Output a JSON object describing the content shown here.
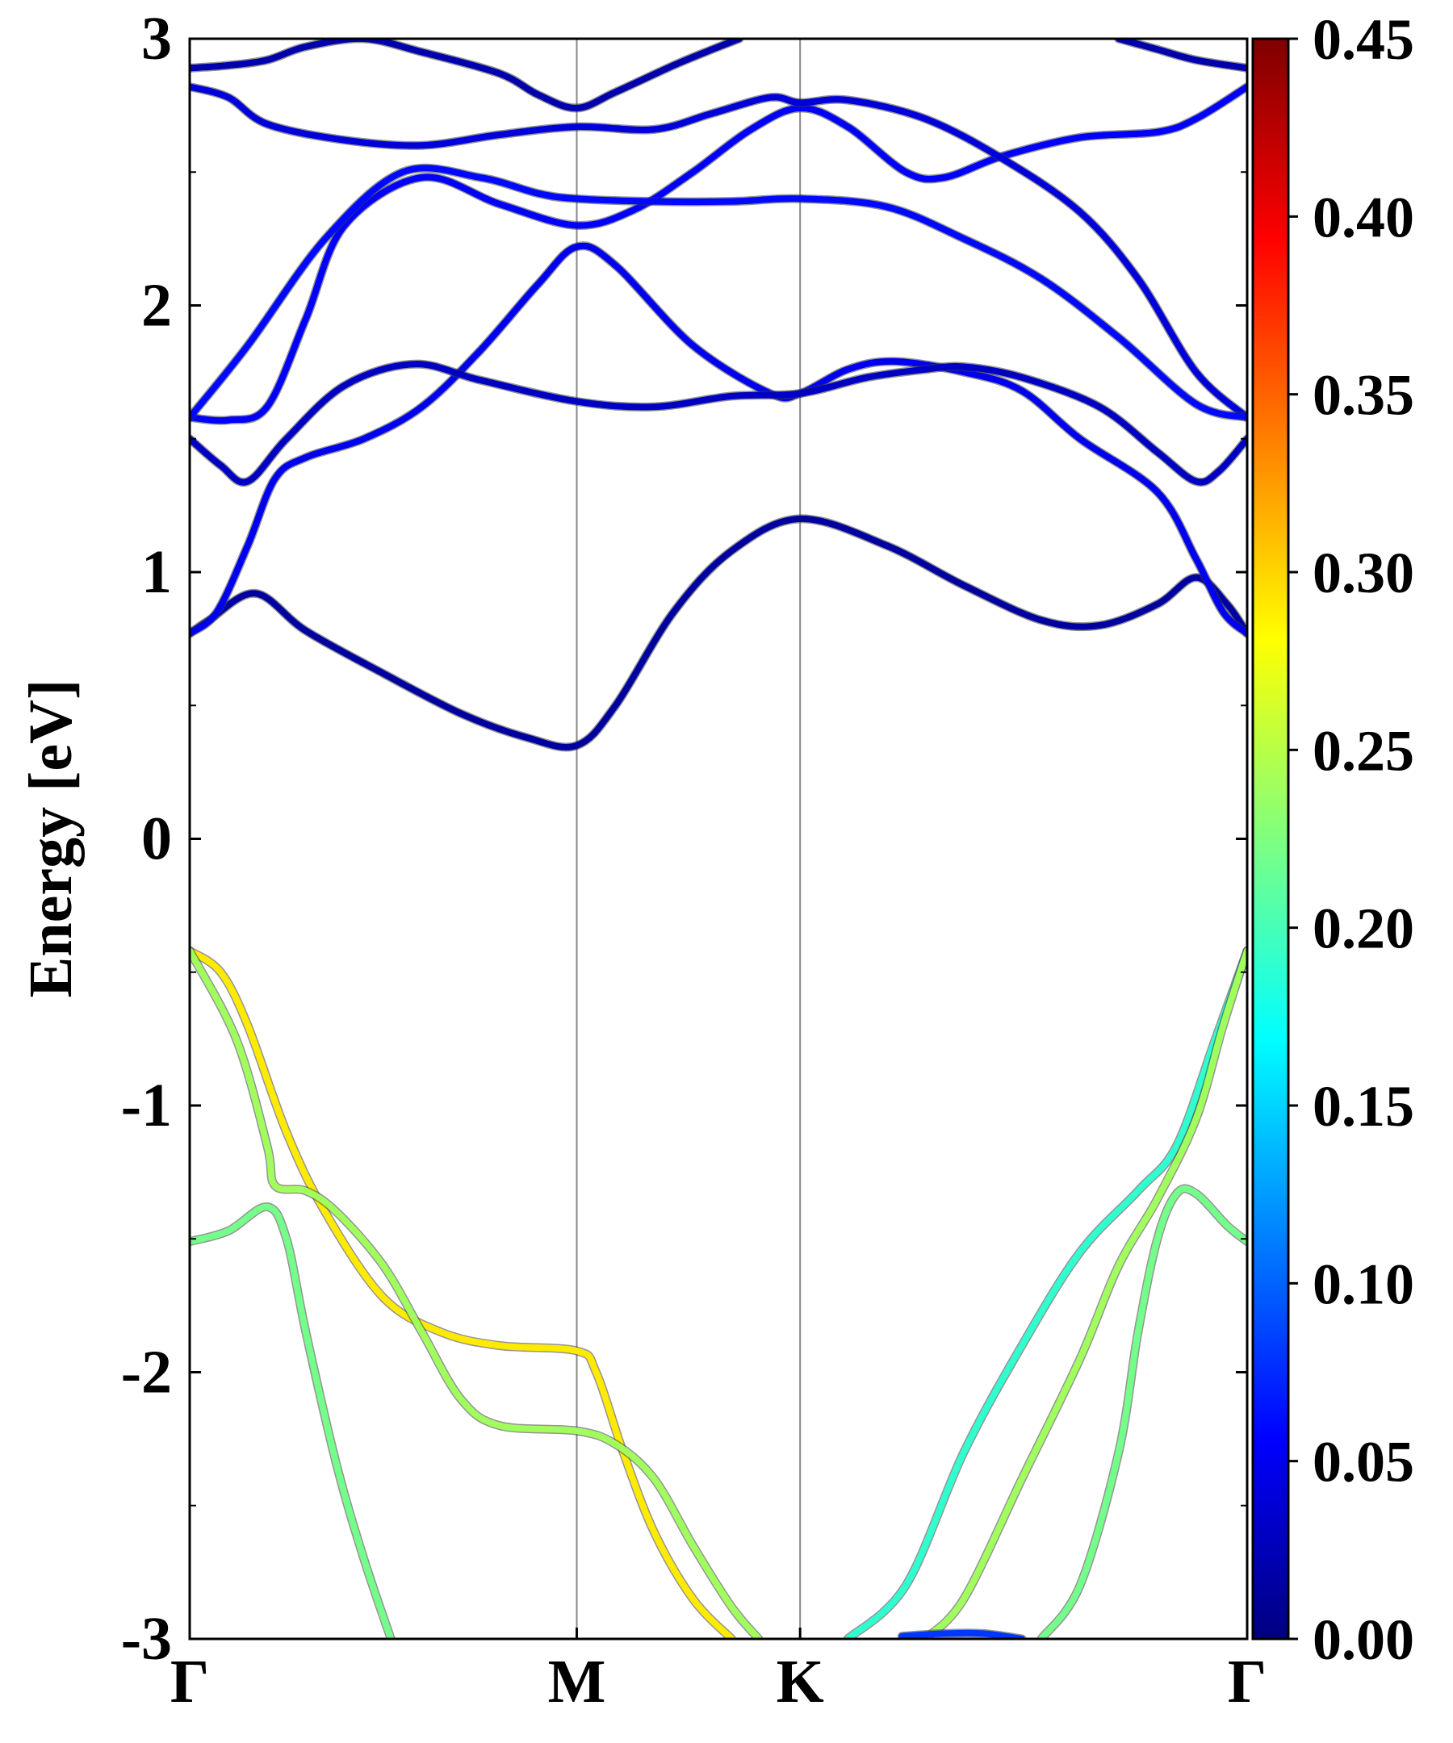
{
  "chart_data": {
    "type": "line",
    "title": "",
    "xlabel": "",
    "ylabel": "Energy [eV]",
    "ylim": [
      -3,
      3
    ],
    "yticks": [
      -3,
      -2,
      -1,
      0,
      1,
      2,
      3
    ],
    "ytick_labels": [
      "-3",
      "-2",
      "-1",
      "0",
      "1",
      "2",
      "3"
    ],
    "high_symmetry_points": [
      {
        "label": "Γ",
        "k": 0.0
      },
      {
        "label": "M",
        "k": 1.0
      },
      {
        "label": "K",
        "k": 1.577
      },
      {
        "label": "Γ",
        "k": 2.732
      }
    ],
    "xlim": [
      0,
      2.732
    ],
    "colorbar": {
      "range": [
        0.0,
        0.45
      ],
      "colormap": "jet",
      "ticks": [
        "0.00",
        "0.05",
        "0.10",
        "0.15",
        "0.20",
        "0.25",
        "0.30",
        "0.35",
        "0.40",
        "0.45"
      ]
    },
    "colors": {
      "jet_stops": [
        "#00007f",
        "#0000ff",
        "#007fff",
        "#00ffff",
        "#7fff7f",
        "#ffff00",
        "#ff7f00",
        "#ff0000",
        "#7f0000"
      ],
      "symmetry_line": "#888888",
      "axis": "#000000"
    },
    "series": [
      {
        "color_value": 0.015,
        "points": [
          [
            0,
            0.77
          ],
          [
            0.05,
            0.82
          ],
          [
            0.17,
            0.92
          ],
          [
            0.3,
            0.78
          ],
          [
            0.5,
            0.62
          ],
          [
            0.7,
            0.47
          ],
          [
            0.87,
            0.38
          ],
          [
            1.0,
            0.35
          ],
          [
            1.1,
            0.5
          ],
          [
            1.25,
            0.85
          ],
          [
            1.4,
            1.08
          ],
          [
            1.577,
            1.2
          ],
          [
            1.8,
            1.1
          ],
          [
            2.0,
            0.95
          ],
          [
            2.2,
            0.82
          ],
          [
            2.35,
            0.8
          ],
          [
            2.5,
            0.88
          ],
          [
            2.6,
            0.98
          ],
          [
            2.68,
            0.88
          ],
          [
            2.732,
            0.77
          ]
        ]
      },
      {
        "color_value": 0.05,
        "points": [
          [
            0,
            0.77
          ],
          [
            0.07,
            0.85
          ],
          [
            0.15,
            1.1
          ],
          [
            0.22,
            1.35
          ],
          [
            0.3,
            1.43
          ],
          [
            0.45,
            1.5
          ],
          [
            0.6,
            1.62
          ],
          [
            0.75,
            1.83
          ],
          [
            0.9,
            2.08
          ],
          [
            1.0,
            2.22
          ],
          [
            1.1,
            2.15
          ],
          [
            1.3,
            1.85
          ],
          [
            1.5,
            1.67
          ],
          [
            1.577,
            1.67
          ],
          [
            1.7,
            1.76
          ],
          [
            1.82,
            1.79
          ],
          [
            2.0,
            1.75
          ],
          [
            2.15,
            1.68
          ],
          [
            2.3,
            1.5
          ],
          [
            2.5,
            1.3
          ],
          [
            2.6,
            1.05
          ],
          [
            2.67,
            0.85
          ],
          [
            2.732,
            0.77
          ]
        ]
      },
      {
        "color_value": 0.03,
        "points": [
          [
            0,
            1.5
          ],
          [
            0.08,
            1.4
          ],
          [
            0.15,
            1.34
          ],
          [
            0.25,
            1.5
          ],
          [
            0.4,
            1.7
          ],
          [
            0.58,
            1.78
          ],
          [
            0.75,
            1.72
          ],
          [
            1.0,
            1.64
          ],
          [
            1.2,
            1.62
          ],
          [
            1.4,
            1.66
          ],
          [
            1.577,
            1.67
          ],
          [
            1.75,
            1.73
          ],
          [
            1.9,
            1.76
          ],
          [
            2.0,
            1.77
          ],
          [
            2.15,
            1.73
          ],
          [
            2.35,
            1.62
          ],
          [
            2.5,
            1.45
          ],
          [
            2.6,
            1.34
          ],
          [
            2.66,
            1.38
          ],
          [
            2.732,
            1.5
          ]
        ]
      },
      {
        "color_value": 0.055,
        "points": [
          [
            0,
            1.58
          ],
          [
            0.1,
            1.57
          ],
          [
            0.2,
            1.62
          ],
          [
            0.3,
            1.95
          ],
          [
            0.4,
            2.3
          ],
          [
            0.6,
            2.48
          ],
          [
            0.8,
            2.38
          ],
          [
            1.0,
            2.3
          ],
          [
            1.15,
            2.36
          ],
          [
            1.3,
            2.5
          ],
          [
            1.45,
            2.66
          ],
          [
            1.577,
            2.74
          ],
          [
            1.7,
            2.67
          ],
          [
            1.85,
            2.5
          ],
          [
            1.95,
            2.48
          ],
          [
            2.1,
            2.56
          ],
          [
            2.3,
            2.63
          ],
          [
            2.5,
            2.65
          ],
          [
            2.6,
            2.7
          ],
          [
            2.732,
            2.82
          ]
        ]
      },
      {
        "color_value": 0.04,
        "points": [
          [
            0,
            2.82
          ],
          [
            0.1,
            2.78
          ],
          [
            0.2,
            2.68
          ],
          [
            0.4,
            2.62
          ],
          [
            0.6,
            2.6
          ],
          [
            0.8,
            2.64
          ],
          [
            1.0,
            2.67
          ],
          [
            1.2,
            2.66
          ],
          [
            1.35,
            2.72
          ],
          [
            1.5,
            2.78
          ],
          [
            1.577,
            2.76
          ],
          [
            1.7,
            2.77
          ],
          [
            1.9,
            2.7
          ],
          [
            2.1,
            2.55
          ],
          [
            2.3,
            2.35
          ],
          [
            2.45,
            2.1
          ],
          [
            2.6,
            1.75
          ],
          [
            2.732,
            1.58
          ]
        ]
      },
      {
        "color_value": 0.06,
        "points": [
          [
            0,
            1.58
          ],
          [
            0.15,
            1.85
          ],
          [
            0.35,
            2.25
          ],
          [
            0.55,
            2.5
          ],
          [
            0.75,
            2.48
          ],
          [
            0.9,
            2.42
          ],
          [
            1.0,
            2.4
          ],
          [
            1.2,
            2.39
          ],
          [
            1.4,
            2.39
          ],
          [
            1.577,
            2.4
          ],
          [
            1.8,
            2.37
          ],
          [
            2.0,
            2.25
          ],
          [
            2.2,
            2.1
          ],
          [
            2.4,
            1.88
          ],
          [
            2.6,
            1.63
          ],
          [
            2.732,
            1.58
          ]
        ]
      },
      {
        "color_value": 0.02,
        "points": [
          [
            0,
            2.89
          ],
          [
            0.1,
            2.9
          ],
          [
            0.2,
            2.92
          ],
          [
            0.3,
            2.97
          ],
          [
            0.45,
            3.0
          ],
          [
            0.6,
            2.95
          ],
          [
            0.8,
            2.87
          ],
          [
            0.9,
            2.79
          ],
          [
            1.0,
            2.74
          ],
          [
            1.1,
            2.8
          ],
          [
            1.25,
            2.9
          ],
          [
            1.35,
            2.96
          ],
          [
            1.42,
            3.0
          ]
        ]
      },
      {
        "color_value": 0.02,
        "points": [
          [
            2.4,
            3.0
          ],
          [
            2.5,
            2.96
          ],
          [
            2.6,
            2.92
          ],
          [
            2.732,
            2.89
          ]
        ]
      },
      {
        "color_value": 0.29,
        "points": [
          [
            0,
            -0.42
          ],
          [
            0.08,
            -0.5
          ],
          [
            0.15,
            -0.7
          ],
          [
            0.25,
            -1.1
          ],
          [
            0.35,
            -1.4
          ],
          [
            0.5,
            -1.72
          ],
          [
            0.65,
            -1.85
          ],
          [
            0.8,
            -1.9
          ],
          [
            1.0,
            -1.92
          ],
          [
            1.05,
            -2.0
          ],
          [
            1.12,
            -2.3
          ],
          [
            1.2,
            -2.6
          ],
          [
            1.3,
            -2.85
          ],
          [
            1.4,
            -3.0
          ]
        ]
      },
      {
        "color_value": 0.24,
        "points": [
          [
            0,
            -0.42
          ],
          [
            0.12,
            -0.75
          ],
          [
            0.2,
            -1.15
          ],
          [
            0.22,
            -1.3
          ],
          [
            0.3,
            -1.32
          ],
          [
            0.38,
            -1.4
          ],
          [
            0.5,
            -1.6
          ],
          [
            0.6,
            -1.85
          ],
          [
            0.7,
            -2.1
          ],
          [
            0.8,
            -2.2
          ],
          [
            1.0,
            -2.22
          ],
          [
            1.1,
            -2.27
          ],
          [
            1.2,
            -2.4
          ],
          [
            1.3,
            -2.65
          ],
          [
            1.4,
            -2.88
          ],
          [
            1.47,
            -3.0
          ]
        ]
      },
      {
        "color_value": 0.22,
        "points": [
          [
            0,
            -1.51
          ],
          [
            0.1,
            -1.47
          ],
          [
            0.2,
            -1.38
          ],
          [
            0.25,
            -1.5
          ],
          [
            0.3,
            -1.85
          ],
          [
            0.38,
            -2.35
          ],
          [
            0.45,
            -2.7
          ],
          [
            0.52,
            -3.0
          ]
        ]
      },
      {
        "color_value": 0.19,
        "points": [
          [
            1.7,
            -3.0
          ],
          [
            1.85,
            -2.8
          ],
          [
            2.0,
            -2.3
          ],
          [
            2.15,
            -1.9
          ],
          [
            2.3,
            -1.55
          ],
          [
            2.45,
            -1.32
          ],
          [
            2.55,
            -1.15
          ],
          [
            2.65,
            -0.75
          ],
          [
            2.732,
            -0.42
          ]
        ]
      },
      {
        "color_value": 0.24,
        "points": [
          [
            1.9,
            -3.0
          ],
          [
            2.0,
            -2.85
          ],
          [
            2.15,
            -2.4
          ],
          [
            2.3,
            -1.95
          ],
          [
            2.4,
            -1.6
          ],
          [
            2.5,
            -1.35
          ],
          [
            2.6,
            -1.05
          ],
          [
            2.67,
            -0.7
          ],
          [
            2.732,
            -0.42
          ]
        ]
      },
      {
        "color_value": 0.22,
        "points": [
          [
            2.2,
            -3.0
          ],
          [
            2.3,
            -2.8
          ],
          [
            2.4,
            -2.3
          ],
          [
            2.45,
            -1.85
          ],
          [
            2.5,
            -1.5
          ],
          [
            2.55,
            -1.33
          ],
          [
            2.6,
            -1.33
          ],
          [
            2.68,
            -1.45
          ],
          [
            2.732,
            -1.51
          ]
        ]
      },
      {
        "color_value": 0.08,
        "points": [
          [
            1.84,
            -2.99
          ],
          [
            1.95,
            -2.98
          ],
          [
            2.05,
            -2.98
          ],
          [
            2.15,
            -3.0
          ]
        ]
      }
    ]
  }
}
